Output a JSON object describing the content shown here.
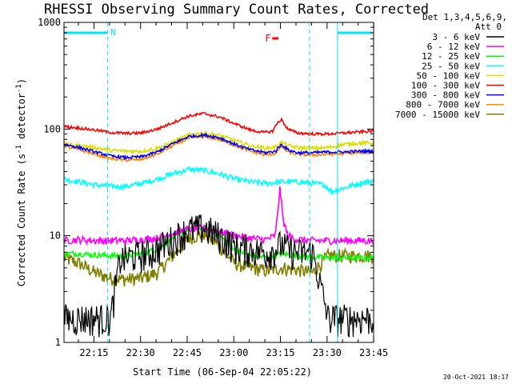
{
  "chart_data": {
    "type": "line",
    "title": "RHESSI Observing Summary Count Rates, Corrected",
    "xlabel": "Start Time (06-Sep-04 22:05:22)",
    "ylabel": "Corrected Count Rate (s⁻¹ detector⁻¹)",
    "ylabel_parts": {
      "main": "Corrected Count Rate (s",
      "sup1": "-1",
      "mid": " detector",
      "sup2": "-1",
      "end": ")"
    },
    "y_scale": "log",
    "xlim_minutes": [
      0,
      99.6
    ],
    "ylim": [
      1,
      1000
    ],
    "x_tick_labels": [
      "22:15",
      "22:30",
      "22:45",
      "23:00",
      "23:15",
      "23:30",
      "23:45"
    ],
    "x_tick_minutes": [
      9.63,
      24.63,
      39.63,
      54.63,
      69.63,
      84.63,
      99.63
    ],
    "y_tick_labels": [
      "1",
      "10",
      "100",
      "1000"
    ],
    "y_tick_values": [
      1,
      10,
      100,
      1000
    ],
    "legend_header": [
      "Det 1,3,4,5,6,9,",
      "Att 0"
    ],
    "legend_position": "right",
    "series": [
      {
        "name": "3 - 6 keV",
        "color": "#000000",
        "x": [
          0,
          5,
          10,
          15,
          18,
          22,
          28,
          34,
          40,
          45,
          50,
          55,
          60,
          65,
          68,
          70,
          72,
          75,
          80,
          85,
          88,
          92,
          96,
          100
        ],
        "y": [
          1.7,
          1.7,
          1.7,
          1.7,
          6,
          6.5,
          7,
          9,
          11.5,
          12,
          10,
          8,
          7.5,
          7,
          7.5,
          8.5,
          7.5,
          7,
          7,
          1.7,
          1.7,
          1.7,
          1.7,
          1.7
        ]
      },
      {
        "name": "6 - 12 keV",
        "color": "#ff00ff",
        "x": [
          0,
          5,
          10,
          15,
          20,
          25,
          30,
          35,
          40,
          45,
          50,
          55,
          60,
          65,
          68,
          69.5,
          70.5,
          72,
          75,
          80,
          85,
          90,
          95,
          100
        ],
        "y": [
          9,
          9.2,
          9,
          9,
          9,
          9.2,
          9.5,
          10.5,
          11.5,
          11.8,
          11,
          10,
          9.5,
          9.2,
          10,
          28,
          14,
          10,
          9.2,
          9,
          9,
          9,
          9,
          9
        ]
      },
      {
        "name": "12 - 25 keV",
        "color": "#00ff00",
        "x": [
          0,
          5,
          10,
          15,
          20,
          25,
          30,
          35,
          40,
          45,
          50,
          55,
          60,
          65,
          70,
          75,
          80,
          85,
          90,
          95,
          100
        ],
        "y": [
          6.8,
          6.8,
          6.6,
          6.5,
          6.5,
          6.8,
          7.5,
          9.5,
          11.5,
          12,
          10,
          7.5,
          6.5,
          6.3,
          6.8,
          6.5,
          6.3,
          6.2,
          6.2,
          6.2,
          6.2
        ]
      },
      {
        "name": "25 - 50 keV",
        "color": "#00ffff",
        "x": [
          0,
          5,
          10,
          15,
          20,
          25,
          30,
          35,
          40,
          45,
          50,
          55,
          60,
          65,
          70,
          75,
          80,
          84,
          86,
          90,
          95,
          100
        ],
        "y": [
          34,
          32,
          30,
          29,
          29,
          31,
          34,
          38,
          42,
          41,
          38,
          34,
          32,
          31,
          32,
          32,
          31,
          30,
          26,
          28,
          31,
          33
        ]
      },
      {
        "name": "50 - 100 keV",
        "color": "#dddd00",
        "x": [
          0,
          5,
          10,
          15,
          20,
          25,
          30,
          35,
          40,
          45,
          50,
          55,
          60,
          65,
          68,
          70,
          72,
          75,
          80,
          85,
          90,
          95,
          100
        ],
        "y": [
          72,
          70,
          67,
          63,
          62,
          62,
          66,
          75,
          88,
          92,
          87,
          78,
          70,
          66,
          68,
          75,
          70,
          67,
          66,
          67,
          72,
          74,
          74
        ]
      },
      {
        "name": "100 - 300 keV",
        "color": "#ff0000",
        "x": [
          0,
          5,
          10,
          15,
          20,
          25,
          30,
          35,
          40,
          45,
          50,
          55,
          60,
          64,
          67,
          69,
          70,
          72,
          75,
          80,
          85,
          90,
          95,
          100
        ],
        "y": [
          106,
          102,
          98,
          93,
          91,
          92,
          100,
          115,
          132,
          140,
          130,
          112,
          98,
          93,
          95,
          118,
          122,
          100,
          92,
          90,
          90,
          92,
          94,
          96
        ]
      },
      {
        "name": "300 - 800 keV",
        "color": "#0000ff",
        "x": [
          0,
          5,
          10,
          15,
          20,
          25,
          30,
          35,
          40,
          45,
          50,
          55,
          60,
          65,
          68,
          70,
          72,
          75,
          80,
          85,
          90,
          95,
          100
        ],
        "y": [
          72,
          67,
          61,
          56,
          54,
          55,
          61,
          73,
          85,
          88,
          83,
          72,
          64,
          60,
          62,
          72,
          64,
          60,
          60,
          61,
          61,
          62,
          62
        ]
      },
      {
        "name": "800 - 7000 keV",
        "color": "#ff8800",
        "x": [
          0,
          5,
          10,
          15,
          20,
          25,
          30,
          35,
          40,
          45,
          50,
          55,
          60,
          65,
          68,
          70,
          72,
          75,
          80,
          85,
          90,
          95,
          100
        ],
        "y": [
          69,
          64,
          58,
          53,
          51,
          52,
          58,
          70,
          82,
          85,
          80,
          70,
          62,
          57,
          59,
          68,
          61,
          58,
          57,
          58,
          59,
          60,
          61
        ]
      },
      {
        "name": "7000 - 15000 keV",
        "color": "#808000",
        "x": [
          0,
          5,
          10,
          15,
          20,
          25,
          30,
          35,
          40,
          45,
          50,
          55,
          60,
          65,
          70,
          75,
          80,
          85,
          90,
          95,
          100
        ],
        "y": [
          6.2,
          5.5,
          4.5,
          4,
          3.9,
          4,
          4.5,
          6.5,
          9.5,
          10.5,
          8,
          5.5,
          5,
          4.7,
          5,
          4.8,
          4.5,
          6.5,
          6.5,
          6.5,
          6.5
        ]
      }
    ],
    "markers": {
      "night_label": "N",
      "flare_label": "F",
      "night_bar_minutes": [
        0,
        14
      ],
      "day_bar_minutes": [
        88,
        99
      ],
      "flare_bar_minutes": [
        67,
        69
      ],
      "night_boundaries_minutes": [
        14,
        79
      ]
    },
    "timestamp": "20-Oct-2021 18:17",
    "grid": false
  }
}
